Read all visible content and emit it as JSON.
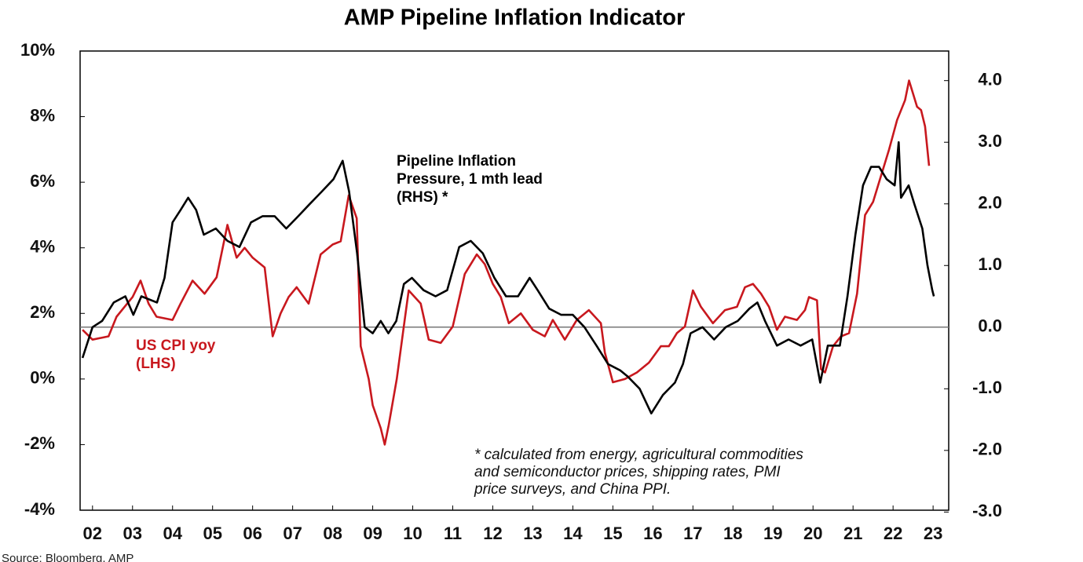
{
  "chart_data": {
    "type": "line",
    "title": "AMP Pipeline Inflation Indicator",
    "source": "Source: Bloomberg, AMP",
    "footnote": [
      "* calculated from energy, agricultural commodities",
      "and semiconductor prices, shipping rates, PMI",
      "price surveys, and China PPI."
    ],
    "xlim": [
      2001.69,
      2023.39
    ],
    "xticks": [
      {
        "value": 2002,
        "label": "02"
      },
      {
        "value": 2003,
        "label": "03"
      },
      {
        "value": 2004,
        "label": "04"
      },
      {
        "value": 2005,
        "label": "05"
      },
      {
        "value": 2006,
        "label": "06"
      },
      {
        "value": 2007,
        "label": "07"
      },
      {
        "value": 2008,
        "label": "08"
      },
      {
        "value": 2009,
        "label": "09"
      },
      {
        "value": 2010,
        "label": "10"
      },
      {
        "value": 2011,
        "label": "11"
      },
      {
        "value": 2012,
        "label": "12"
      },
      {
        "value": 2013,
        "label": "13"
      },
      {
        "value": 2014,
        "label": "14"
      },
      {
        "value": 2015,
        "label": "15"
      },
      {
        "value": 2016,
        "label": "16"
      },
      {
        "value": 2017,
        "label": "17"
      },
      {
        "value": 2018,
        "label": "18"
      },
      {
        "value": 2019,
        "label": "19"
      },
      {
        "value": 2020,
        "label": "20"
      },
      {
        "value": 2021,
        "label": "21"
      },
      {
        "value": 2022,
        "label": "22"
      },
      {
        "value": 2023,
        "label": "23"
      }
    ],
    "ylim": [
      -4,
      10
    ],
    "yticks": [
      {
        "value": 10,
        "label": "10%"
      },
      {
        "value": 8,
        "label": "8%"
      },
      {
        "value": 6,
        "label": "6%"
      },
      {
        "value": 4,
        "label": "4%"
      },
      {
        "value": 2,
        "label": "2%"
      },
      {
        "value": 0,
        "label": "0%"
      },
      {
        "value": -2,
        "label": "-2%"
      },
      {
        "value": -4,
        "label": "-4%"
      }
    ],
    "y2lim": [
      -2.97,
      4.48
    ],
    "y2ticks": [
      {
        "value": 4,
        "label": "4.0"
      },
      {
        "value": 3,
        "label": "3.0"
      },
      {
        "value": 2,
        "label": "2.0"
      },
      {
        "value": 1,
        "label": "1.0"
      },
      {
        "value": 0,
        "label": "0.0"
      },
      {
        "value": -1,
        "label": "-1.0"
      },
      {
        "value": -2,
        "label": "-2.0"
      },
      {
        "value": -3,
        "label": "-3.0"
      }
    ],
    "zero_line_y2": true,
    "series": [
      {
        "label_lines": [
          "US CPI yoy",
          "(LHS)"
        ],
        "color": "#c8181e",
        "axis": "y",
        "x": [
          2001.75,
          2002.0,
          2002.4,
          2002.6,
          2002.8,
          2003.0,
          2003.2,
          2003.4,
          2003.6,
          2004.0,
          2004.2,
          2004.5,
          2004.8,
          2005.1,
          2005.37,
          2005.6,
          2005.8,
          2006.0,
          2006.3,
          2006.5,
          2006.7,
          2006.9,
          2007.1,
          2007.4,
          2007.7,
          2008.0,
          2008.2,
          2008.4,
          2008.6,
          2008.7,
          2008.9,
          2009.0,
          2009.2,
          2009.3,
          2009.4,
          2009.6,
          2009.8,
          2009.9,
          2010.2,
          2010.4,
          2010.7,
          2011.0,
          2011.3,
          2011.6,
          2011.8,
          2012.0,
          2012.2,
          2012.4,
          2012.7,
          2013.0,
          2013.3,
          2013.5,
          2013.8,
          2014.1,
          2014.4,
          2014.7,
          2014.8,
          2015.0,
          2015.3,
          2015.6,
          2015.9,
          2016.2,
          2016.4,
          2016.6,
          2016.8,
          2017.0,
          2017.2,
          2017.5,
          2017.8,
          2018.1,
          2018.3,
          2018.5,
          2018.7,
          2018.9,
          2019.1,
          2019.3,
          2019.6,
          2019.8,
          2019.9,
          2020.1,
          2020.2,
          2020.3,
          2020.5,
          2020.7,
          2020.9,
          2021.1,
          2021.3,
          2021.5,
          2021.7,
          2021.9,
          2022.1,
          2022.3,
          2022.4,
          2022.6,
          2022.7,
          2022.8,
          2022.9
        ],
        "values": [
          1.5,
          1.2,
          1.3,
          1.9,
          2.2,
          2.5,
          3.0,
          2.3,
          1.9,
          1.8,
          2.3,
          3.0,
          2.6,
          3.1,
          4.7,
          3.7,
          4.0,
          3.7,
          3.4,
          1.3,
          2.0,
          2.5,
          2.8,
          2.3,
          3.8,
          4.1,
          4.2,
          5.6,
          4.9,
          1.0,
          0.0,
          -0.8,
          -1.5,
          -2.0,
          -1.4,
          0.0,
          1.8,
          2.7,
          2.3,
          1.2,
          1.1,
          1.6,
          3.2,
          3.8,
          3.5,
          2.9,
          2.5,
          1.7,
          2.0,
          1.5,
          1.3,
          1.8,
          1.2,
          1.8,
          2.1,
          1.7,
          0.8,
          -0.1,
          0.0,
          0.2,
          0.5,
          1.0,
          1.0,
          1.4,
          1.6,
          2.7,
          2.2,
          1.7,
          2.1,
          2.2,
          2.8,
          2.9,
          2.6,
          2.2,
          1.5,
          1.9,
          1.8,
          2.1,
          2.5,
          2.4,
          0.3,
          0.2,
          1.0,
          1.3,
          1.4,
          2.6,
          5.0,
          5.4,
          6.2,
          7.0,
          7.9,
          8.5,
          9.1,
          8.3,
          8.2,
          7.7,
          6.5
        ]
      },
      {
        "label_lines": [
          "Pipeline Inflation",
          "Pressure, 1 mth lead",
          "(RHS) *"
        ],
        "color": "#000000",
        "axis": "y2",
        "x": [
          2001.75,
          2002.0,
          2002.24,
          2002.53,
          2002.82,
          2003.02,
          2003.22,
          2003.61,
          2003.8,
          2004.0,
          2004.2,
          2004.39,
          2004.59,
          2004.78,
          2005.08,
          2005.37,
          2005.67,
          2005.96,
          2006.25,
          2006.55,
          2006.84,
          2007.14,
          2007.43,
          2007.73,
          2008.02,
          2008.25,
          2008.41,
          2008.61,
          2008.8,
          2009.0,
          2009.2,
          2009.39,
          2009.59,
          2009.78,
          2009.98,
          2010.27,
          2010.57,
          2010.86,
          2011.16,
          2011.45,
          2011.75,
          2012.04,
          2012.33,
          2012.63,
          2012.92,
          2013.12,
          2013.41,
          2013.71,
          2014.0,
          2014.29,
          2014.59,
          2014.88,
          2015.18,
          2015.37,
          2015.67,
          2015.96,
          2016.25,
          2016.55,
          2016.75,
          2016.94,
          2017.24,
          2017.53,
          2017.82,
          2018.12,
          2018.41,
          2018.61,
          2018.8,
          2019.1,
          2019.39,
          2019.69,
          2019.98,
          2020.18,
          2020.37,
          2020.67,
          2020.86,
          2021.06,
          2021.25,
          2021.45,
          2021.65,
          2021.84,
          2022.04,
          2022.14,
          2022.2,
          2022.39,
          2022.53,
          2022.73,
          2022.86,
          2022.98,
          2023.02
        ],
        "values": [
          -0.5,
          0.0,
          0.1,
          0.4,
          0.5,
          0.2,
          0.5,
          0.4,
          0.8,
          1.7,
          1.9,
          2.1,
          1.9,
          1.5,
          1.6,
          1.4,
          1.3,
          1.7,
          1.8,
          1.8,
          1.6,
          1.8,
          2.0,
          2.2,
          2.4,
          2.7,
          2.2,
          1.2,
          0.0,
          -0.1,
          0.1,
          -0.1,
          0.1,
          0.7,
          0.8,
          0.6,
          0.5,
          0.6,
          1.3,
          1.4,
          1.2,
          0.8,
          0.5,
          0.5,
          0.8,
          0.6,
          0.3,
          0.2,
          0.2,
          0.0,
          -0.3,
          -0.6,
          -0.7,
          -0.8,
          -1.0,
          -1.4,
          -1.1,
          -0.9,
          -0.6,
          -0.1,
          0.0,
          -0.2,
          0.0,
          0.1,
          0.3,
          0.4,
          0.1,
          -0.3,
          -0.2,
          -0.3,
          -0.2,
          -0.9,
          -0.3,
          -0.3,
          0.5,
          1.5,
          2.3,
          2.6,
          2.6,
          2.4,
          2.3,
          3.0,
          2.1,
          2.3,
          2.0,
          1.6,
          1.0,
          0.6,
          0.5
        ]
      }
    ]
  }
}
